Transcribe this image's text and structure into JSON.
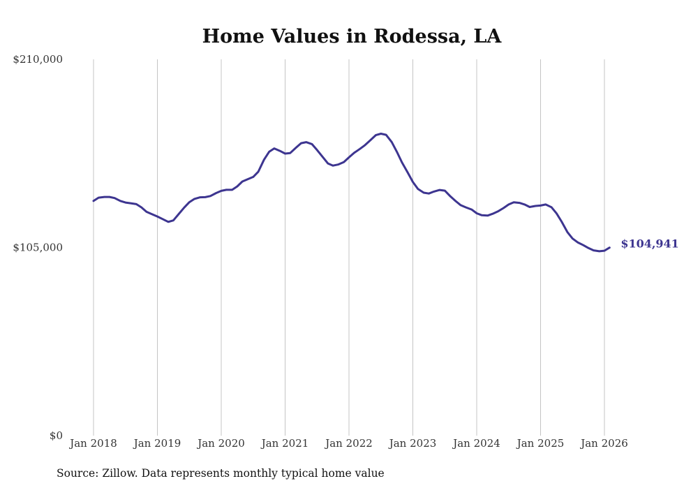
{
  "chart_data": {
    "type": "line",
    "title": "Home Values in Rodessa, LA",
    "xlabel": "",
    "ylabel": "",
    "ylim": [
      0,
      210000
    ],
    "y_ticks": [
      {
        "value": 0,
        "label": "$0"
      },
      {
        "value": 105000,
        "label": "$105,000"
      },
      {
        "value": 210000,
        "label": "$210,000"
      }
    ],
    "x_ticks": [
      {
        "value": 2018,
        "label": "Jan 2018"
      },
      {
        "value": 2019,
        "label": "Jan 2019"
      },
      {
        "value": 2020,
        "label": "Jan 2020"
      },
      {
        "value": 2021,
        "label": "Jan 2021"
      },
      {
        "value": 2022,
        "label": "Jan 2022"
      },
      {
        "value": 2023,
        "label": "Jan 2023"
      },
      {
        "value": 2024,
        "label": "Jan 2024"
      },
      {
        "value": 2025,
        "label": "Jan 2025"
      },
      {
        "value": 2026,
        "label": "Jan 2026"
      }
    ],
    "xlim": [
      2018,
      2026.08
    ],
    "grid": "vertical",
    "line_color": "#3d3590",
    "end_label": "$104,941",
    "points": [
      [
        2018.0,
        131000
      ],
      [
        2018.08,
        132800
      ],
      [
        2018.17,
        133200
      ],
      [
        2018.25,
        133200
      ],
      [
        2018.33,
        132600
      ],
      [
        2018.42,
        131000
      ],
      [
        2018.5,
        130100
      ],
      [
        2018.58,
        129700
      ],
      [
        2018.67,
        129200
      ],
      [
        2018.75,
        127400
      ],
      [
        2018.83,
        124900
      ],
      [
        2018.92,
        123500
      ],
      [
        2019.0,
        122300
      ],
      [
        2019.08,
        120900
      ],
      [
        2019.17,
        119300
      ],
      [
        2019.25,
        120100
      ],
      [
        2019.33,
        123500
      ],
      [
        2019.42,
        127300
      ],
      [
        2019.5,
        130300
      ],
      [
        2019.58,
        132100
      ],
      [
        2019.67,
        133000
      ],
      [
        2019.75,
        133100
      ],
      [
        2019.83,
        133700
      ],
      [
        2019.92,
        135400
      ],
      [
        2020.0,
        136600
      ],
      [
        2020.08,
        137200
      ],
      [
        2020.17,
        137200
      ],
      [
        2020.25,
        139100
      ],
      [
        2020.33,
        141800
      ],
      [
        2020.42,
        143200
      ],
      [
        2020.5,
        144400
      ],
      [
        2020.58,
        147300
      ],
      [
        2020.67,
        154000
      ],
      [
        2020.75,
        158400
      ],
      [
        2020.83,
        160300
      ],
      [
        2020.92,
        158900
      ],
      [
        2021.0,
        157400
      ],
      [
        2021.08,
        157700
      ],
      [
        2021.17,
        160700
      ],
      [
        2021.25,
        163200
      ],
      [
        2021.33,
        163800
      ],
      [
        2021.42,
        162700
      ],
      [
        2021.5,
        159400
      ],
      [
        2021.58,
        155900
      ],
      [
        2021.67,
        151900
      ],
      [
        2021.75,
        150700
      ],
      [
        2021.83,
        151300
      ],
      [
        2021.92,
        152700
      ],
      [
        2022.0,
        155300
      ],
      [
        2022.08,
        157800
      ],
      [
        2022.17,
        160000
      ],
      [
        2022.25,
        162100
      ],
      [
        2022.33,
        164700
      ],
      [
        2022.42,
        167700
      ],
      [
        2022.5,
        168500
      ],
      [
        2022.58,
        167900
      ],
      [
        2022.67,
        163800
      ],
      [
        2022.75,
        158400
      ],
      [
        2022.83,
        152500
      ],
      [
        2022.92,
        146800
      ],
      [
        2023.0,
        141600
      ],
      [
        2023.08,
        137700
      ],
      [
        2023.17,
        135600
      ],
      [
        2023.25,
        135100
      ],
      [
        2023.33,
        136200
      ],
      [
        2023.42,
        137100
      ],
      [
        2023.5,
        136700
      ],
      [
        2023.58,
        133800
      ],
      [
        2023.67,
        130900
      ],
      [
        2023.75,
        128600
      ],
      [
        2023.83,
        127400
      ],
      [
        2023.92,
        126200
      ],
      [
        2024.0,
        124100
      ],
      [
        2024.08,
        123000
      ],
      [
        2024.17,
        122800
      ],
      [
        2024.25,
        123800
      ],
      [
        2024.33,
        125100
      ],
      [
        2024.42,
        127000
      ],
      [
        2024.5,
        129000
      ],
      [
        2024.58,
        130200
      ],
      [
        2024.67,
        129900
      ],
      [
        2024.75,
        129000
      ],
      [
        2024.83,
        127600
      ],
      [
        2024.92,
        128200
      ],
      [
        2025.0,
        128400
      ],
      [
        2025.08,
        129000
      ],
      [
        2025.17,
        127500
      ],
      [
        2025.25,
        124000
      ],
      [
        2025.33,
        119400
      ],
      [
        2025.42,
        113600
      ],
      [
        2025.5,
        110000
      ],
      [
        2025.58,
        107900
      ],
      [
        2025.67,
        106300
      ],
      [
        2025.75,
        104700
      ],
      [
        2025.83,
        103400
      ],
      [
        2025.92,
        102900
      ],
      [
        2026.0,
        103200
      ],
      [
        2026.08,
        104941
      ]
    ]
  },
  "footer": {
    "source": "Source: Zillow. Data represents monthly typical home value"
  }
}
